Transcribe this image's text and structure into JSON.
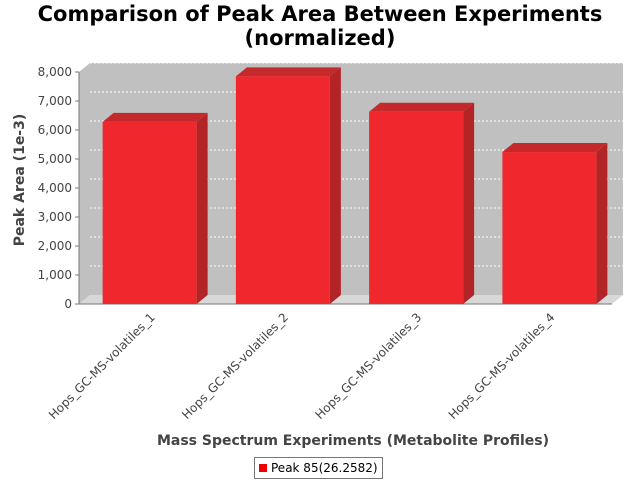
{
  "title": {
    "line1": "Comparison of Peak Area Between Experiments",
    "line2": "(normalized)"
  },
  "chart_data": {
    "type": "bar",
    "style": "3d",
    "categories": [
      "Hops_GC-MS-volatiles_1",
      "Hops_GC-MS-volatiles_2",
      "Hops_GC-MS-volatiles_3",
      "Hops_GC-MS-volatiles_4"
    ],
    "series": [
      {
        "name": "Peak 85(26.2582)",
        "values": [
          6280,
          7850,
          6630,
          5240
        ]
      }
    ],
    "xlabel": "Mass Spectrum Experiments (Metabolite Profiles)",
    "ylabel": "Peak Area (1e-3)",
    "ylim": [
      0,
      8000
    ],
    "yticks": [
      "0",
      "1,000",
      "2,000",
      "3,000",
      "4,000",
      "5,000",
      "6,000",
      "7,000",
      "8,000"
    ],
    "grid": true,
    "legend_position": "bottom",
    "colors": {
      "bar_front": "#f0282d",
      "bar_side": "#b32427",
      "bar_top": "#c42a2c",
      "plot_background": "#c0c0c0",
      "floor": "#d8d8d8",
      "legend_swatch": "#ee0000"
    }
  }
}
